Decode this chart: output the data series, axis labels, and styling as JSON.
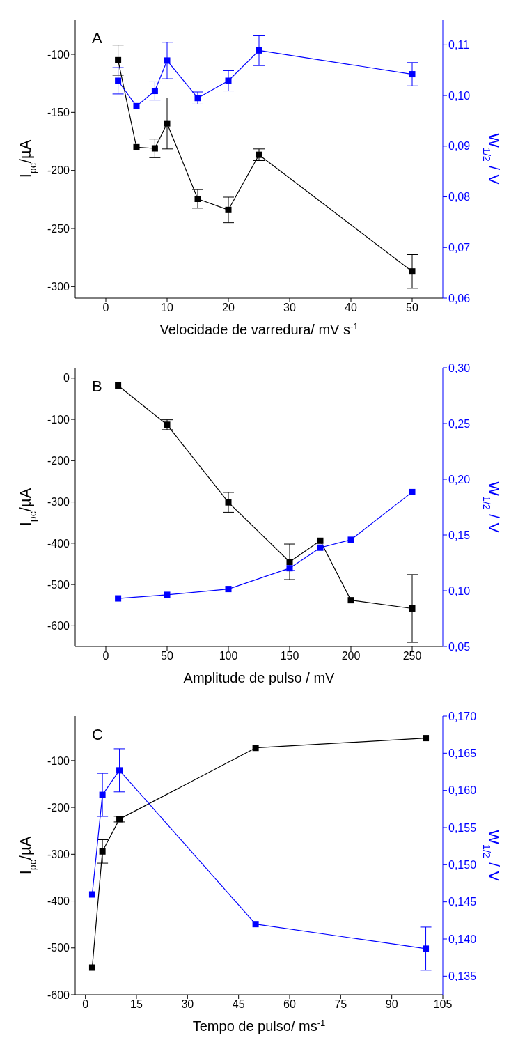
{
  "chart_data": [
    {
      "type": "line",
      "annotations": [
        "A"
      ],
      "xlabel": "Velocidade de varredura/ mV s$^{-1}$",
      "ylabel": "I$_{pc}$/µA",
      "y2label": "W$_{1/2}$ / V",
      "x": [
        2,
        5,
        8,
        10,
        15,
        20,
        25,
        50
      ],
      "series": [
        {
          "color": "#000000",
          "values": [
            -105,
            -180,
            -181,
            -159.5,
            -224.5,
            -234,
            -186.5,
            -287
          ],
          "errors": [
            13,
            null,
            8,
            22,
            8,
            11,
            5,
            14.5
          ]
        },
        {
          "color": "#0000ff",
          "axis": "y2",
          "values": [
            0.1029,
            0.0979,
            0.1009,
            0.1069,
            0.0995,
            0.1029,
            0.1089,
            0.1042
          ],
          "errors": [
            0.0026,
            null,
            0.0018,
            0.0036,
            0.0012,
            0.002,
            0.003,
            0.0023
          ]
        }
      ],
      "xlim": [
        -5,
        55
      ],
      "xticks": [
        0,
        10,
        20,
        30,
        40,
        50
      ],
      "ylim": [
        -310,
        -70
      ],
      "yticks": [
        -300,
        -250,
        -200,
        -150,
        -100
      ],
      "y2lim": [
        0.06,
        0.115
      ],
      "y2ticks": [
        {
          "value": 0.06,
          "label": "0,06"
        },
        {
          "value": 0.07,
          "label": "0,07"
        },
        {
          "value": 0.08,
          "label": "0,08"
        },
        {
          "value": 0.09,
          "label": "0,09"
        },
        {
          "value": 0.1,
          "label": "0,10"
        },
        {
          "value": 0.11,
          "label": "0,11"
        }
      ],
      "marker": "square",
      "line_style": "solid",
      "grid": false,
      "legend": false
    },
    {
      "type": "line",
      "annotations": [
        "B"
      ],
      "xlabel": "Amplitude de pulso / mV",
      "ylabel": "I$_{pc}$/µA",
      "y2label": "W$_{1/2}$ / V",
      "x": [
        10,
        50,
        100,
        150,
        175,
        200,
        250
      ],
      "series": [
        {
          "color": "#000000",
          "values": [
            -18,
            -113,
            -301,
            -445,
            -394,
            -538,
            -558
          ],
          "errors": [
            null,
            12,
            24,
            43,
            null,
            null,
            82
          ]
        },
        {
          "color": "#0000ff",
          "axis": "y2",
          "values": [
            0.0931,
            0.0963,
            0.1015,
            0.1202,
            0.1386,
            0.1457,
            0.1885
          ],
          "errors": [
            null,
            null,
            null,
            0.002,
            null,
            null,
            null
          ]
        }
      ],
      "xlim": [
        -25,
        275
      ],
      "xticks": [
        0,
        50,
        100,
        150,
        200,
        250
      ],
      "ylim": [
        -650,
        25
      ],
      "yticks": [
        -600,
        -500,
        -400,
        -300,
        -200,
        -100,
        0
      ],
      "y2lim": [
        0.05,
        0.3
      ],
      "y2ticks": [
        {
          "value": 0.05,
          "label": "0,05"
        },
        {
          "value": 0.1,
          "label": "0,10"
        },
        {
          "value": 0.15,
          "label": "0,15"
        },
        {
          "value": 0.2,
          "label": "0,20"
        },
        {
          "value": 0.25,
          "label": "0,25"
        },
        {
          "value": 0.3,
          "label": "0,30"
        }
      ],
      "marker": "square",
      "line_style": "solid",
      "grid": false,
      "legend": false
    },
    {
      "type": "line",
      "annotations": [
        "C"
      ],
      "xlabel": "Tempo de pulso/ ms$^{-1}$",
      "ylabel": "I$_{pc}$/µA",
      "y2label": "W$_{1/2}$ / V",
      "x": [
        2,
        5,
        10,
        50,
        100
      ],
      "series": [
        {
          "color": "#000000",
          "values": [
            -542,
            -294,
            -225,
            -73,
            -52
          ],
          "errors": [
            null,
            25,
            6,
            null,
            null
          ]
        },
        {
          "color": "#0000ff",
          "axis": "y2",
          "values": [
            0.146,
            0.1594,
            0.1627,
            0.142,
            0.1387
          ],
          "errors": [
            null,
            0.0029,
            0.0029,
            null,
            0.0029
          ]
        }
      ],
      "xlim": [
        -3,
        105
      ],
      "xticks": [
        0,
        15,
        30,
        45,
        60,
        75,
        90,
        105
      ],
      "ylim": [
        -600,
        -5
      ],
      "yticks": [
        -600,
        -500,
        -400,
        -300,
        -200,
        -100
      ],
      "y2lim": [
        0.1325,
        0.17
      ],
      "y2ticks": [
        {
          "value": 0.135,
          "label": "0,135"
        },
        {
          "value": 0.14,
          "label": "0,140"
        },
        {
          "value": 0.145,
          "label": "0,145"
        },
        {
          "value": 0.15,
          "label": "0,150"
        },
        {
          "value": 0.155,
          "label": "0,155"
        },
        {
          "value": 0.16,
          "label": "0,160"
        },
        {
          "value": 0.165,
          "label": "0,165"
        },
        {
          "value": 0.17,
          "label": "0,170"
        }
      ],
      "marker": "square",
      "line_style": "solid",
      "grid": false,
      "legend": false
    }
  ]
}
